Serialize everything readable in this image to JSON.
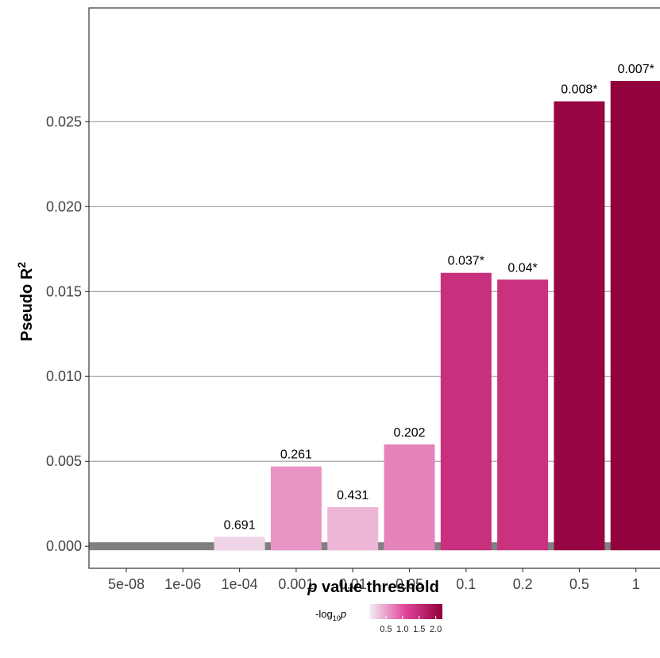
{
  "chart_data": {
    "type": "bar",
    "categories": [
      "5e-08",
      "1e-06",
      "1e-04",
      "0.001",
      "0.01",
      "0.05",
      "0.1",
      "0.2",
      "0.5",
      "1"
    ],
    "values": [
      0,
      0,
      0.00055,
      0.0047,
      0.0023,
      0.006,
      0.0161,
      0.0157,
      0.0262,
      0.0274
    ],
    "bar_labels": [
      "",
      "",
      "0.691",
      "0.261",
      "0.431",
      "0.202",
      "0.037*",
      "0.04*",
      "0.008*",
      "0.007*"
    ],
    "p_values": [
      null,
      null,
      0.691,
      0.261,
      0.431,
      0.202,
      0.037,
      0.04,
      0.008,
      0.007
    ],
    "ylim": [
      -0.0013,
      0.0317
    ],
    "yticks": [
      "0.000",
      "0.005",
      "0.010",
      "0.015",
      "0.020",
      "0.025"
    ],
    "xlabel_em": "p",
    "xlabel_rest": " value threshold",
    "ylabel": "Pseudo R",
    "ylabel_sup": "2",
    "grid": true,
    "legend": {
      "placement": "bottom",
      "title_prefix": "-log",
      "title_sub": "10",
      "title_var": "p",
      "ticks": [
        "0.5",
        "1.0",
        "1.5",
        "2.0"
      ],
      "range": [
        0,
        2.2
      ],
      "color_low": "#f3eef6",
      "color_mid": "#e0449a",
      "color_high": "#8f0039"
    }
  }
}
